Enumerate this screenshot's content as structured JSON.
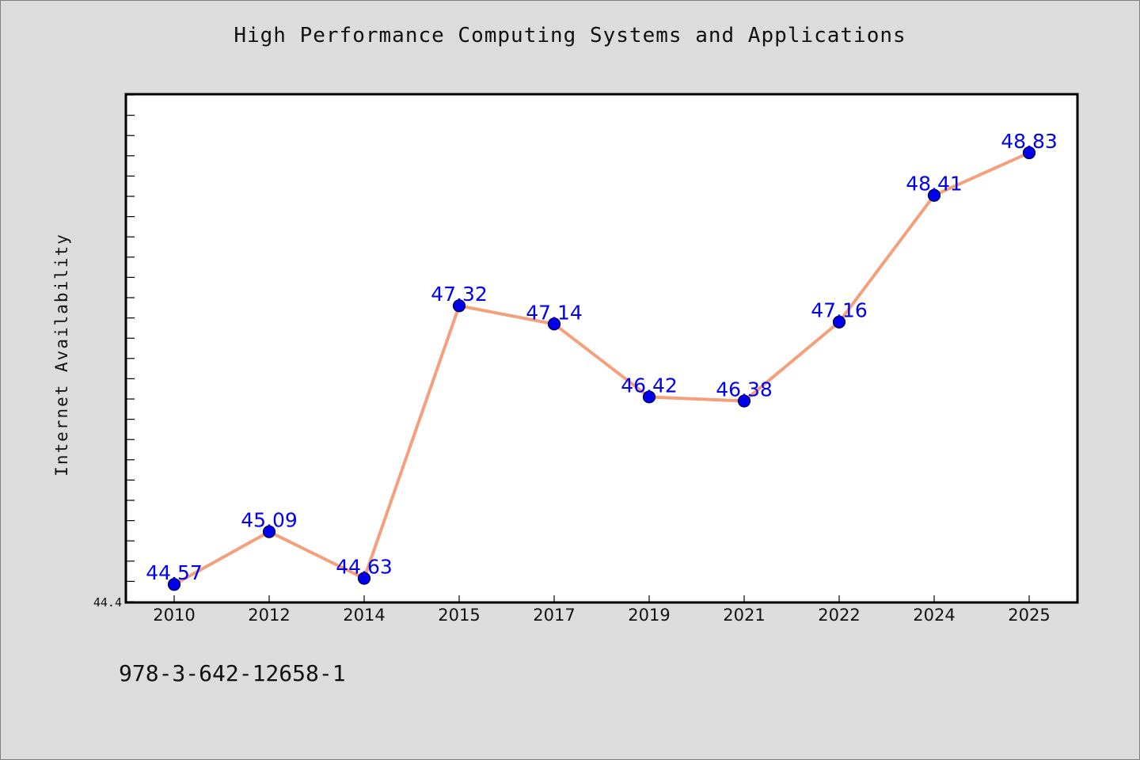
{
  "chart_data": {
    "type": "line",
    "title": "High Performance Computing Systems and Applications",
    "xlabel": "",
    "ylabel": "Internet Availability",
    "categories": [
      "2010",
      "2012",
      "2014",
      "2015",
      "2017",
      "2019",
      "2021",
      "2022",
      "2024",
      "2025"
    ],
    "series": [
      {
        "values": [
          44.57,
          45.09,
          44.63,
          47.32,
          47.14,
          46.42,
          46.38,
          47.16,
          48.41,
          48.83
        ]
      }
    ],
    "data_labels": [
      "44.57",
      "45.09",
      "44.63",
      "47.32",
      "47.14",
      "46.42",
      "46.38",
      "47.16",
      "48.41",
      "48.83"
    ],
    "y_tick_labels": [
      "44.4"
    ],
    "ylim": [
      44.4,
      49.4
    ],
    "grid": false,
    "colors": {
      "line": "#f4a07c",
      "marker_fill": "#0000ee",
      "marker_edge": "#000033",
      "data_label": "#0000ee",
      "background": "#dcdcdc",
      "plot_background": "#ffffff"
    }
  },
  "footer": {
    "identifier": "978-3-642-12658-1"
  }
}
